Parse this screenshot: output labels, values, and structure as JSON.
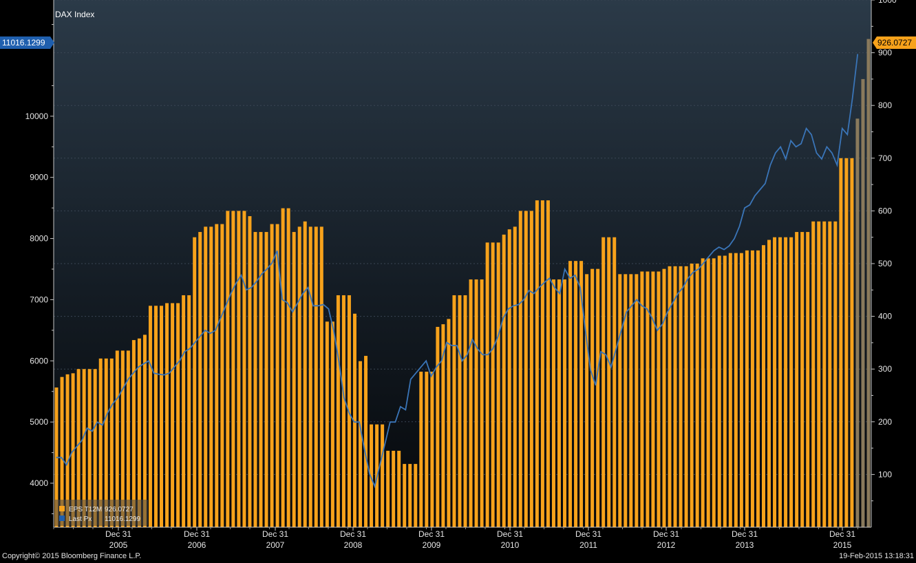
{
  "chart_data": {
    "type": "bar+line",
    "title": "DAX Index",
    "x_ticks": [
      {
        "label": "Dec 31",
        "year": "2005"
      },
      {
        "label": "Dec 31",
        "year": "2006"
      },
      {
        "label": "Dec 31",
        "year": "2007"
      },
      {
        "label": "Dec 31",
        "year": "2008"
      },
      {
        "label": "Dec 31",
        "year": "2009"
      },
      {
        "label": "Dec 31",
        "year": "2010"
      },
      {
        "label": "Dec 31",
        "year": "2011"
      },
      {
        "label": "Dec 31",
        "year": "2012"
      },
      {
        "label": "Dec 31",
        "year": "2013"
      },
      {
        "label": "Dec 31",
        "year": "2015"
      }
    ],
    "left_axis": {
      "ticks": [
        4000,
        5000,
        6000,
        7000,
        8000,
        9000,
        10000
      ],
      "range": [
        3280,
        11900
      ]
    },
    "right_axis": {
      "ticks": [
        100,
        200,
        300,
        400,
        500,
        600,
        700,
        800,
        900,
        1000
      ],
      "range": [
        0,
        1000
      ]
    },
    "series": [
      {
        "name": "EPS T12M",
        "last": "926.0727",
        "color": "#f7a21b",
        "forecast_color": "#8a7a5c",
        "values": [
          265,
          285,
          290,
          292,
          300,
          300,
          300,
          300,
          320,
          320,
          320,
          335,
          335,
          335,
          355,
          358,
          365,
          420,
          420,
          420,
          425,
          425,
          425,
          440,
          440,
          550,
          560,
          570,
          570,
          575,
          575,
          600,
          600,
          600,
          600,
          590,
          560,
          560,
          560,
          575,
          575,
          605,
          605,
          560,
          570,
          580,
          570,
          570,
          570,
          390,
          390,
          440,
          440,
          440,
          405,
          315,
          325,
          195,
          195,
          195,
          145,
          145,
          145,
          120,
          120,
          120,
          295,
          295,
          295,
          380,
          385,
          395,
          440,
          440,
          440,
          470,
          470,
          470,
          540,
          540,
          540,
          555,
          565,
          570,
          600,
          600,
          600,
          620,
          620,
          620,
          470,
          470,
          470,
          505,
          505,
          505,
          480,
          490,
          490,
          550,
          550,
          550,
          480,
          480,
          480,
          480,
          485,
          485,
          485,
          485,
          490,
          495,
          495,
          495,
          495,
          500,
          500,
          510,
          510,
          510,
          515,
          515,
          520,
          520,
          520,
          525,
          525,
          525,
          535,
          545,
          550,
          550,
          550,
          550,
          560,
          560,
          560,
          580,
          580,
          580,
          580,
          580,
          700,
          700,
          700,
          775,
          850,
          926.0727
        ],
        "forecast_from": 145
      },
      {
        "name": "Last Px",
        "last": "11016.1299",
        "color": "#3a75b8",
        "values": [
          4420,
          4420,
          4300,
          4500,
          4600,
          4700,
          4900,
          4850,
          5000,
          4950,
          5150,
          5300,
          5400,
          5550,
          5700,
          5800,
          5900,
          5950,
          6000,
          5800,
          5780,
          5770,
          5800,
          5900,
          6000,
          6150,
          6200,
          6300,
          6400,
          6500,
          6450,
          6500,
          6700,
          6900,
          7100,
          7270,
          7400,
          7160,
          7200,
          7300,
          7420,
          7500,
          7600,
          7800,
          7000,
          6950,
          6800,
          6950,
          7100,
          7200,
          6900,
          6900,
          6920,
          6850,
          6500,
          6000,
          5400,
          5150,
          5000,
          5000,
          4550,
          4150,
          3950,
          4300,
          4650,
          5000,
          5000,
          5250,
          5200,
          5700,
          5800,
          5900,
          6000,
          5750,
          5900,
          6000,
          6300,
          6250,
          6250,
          6000,
          6100,
          6350,
          6200,
          6100,
          6100,
          6200,
          6400,
          6700,
          6850,
          6900,
          6920,
          7000,
          7150,
          7100,
          7200,
          7280,
          7350,
          7200,
          7100,
          7500,
          7350,
          7400,
          7200,
          6500,
          5850,
          5600,
          6150,
          6100,
          5900,
          6200,
          6500,
          6800,
          6900,
          7000,
          6900,
          6850,
          6700,
          6500,
          6600,
          6800,
          6950,
          7100,
          7200,
          7350,
          7450,
          7500,
          7600,
          7700,
          7800,
          7860,
          7820,
          7880,
          8000,
          8200,
          8500,
          8550,
          8700,
          8800,
          8900,
          9200,
          9400,
          9500,
          9300,
          9600,
          9500,
          9550,
          9800,
          9700,
          9400,
          9300,
          9500,
          9400,
          9200,
          9800,
          9700,
          10300,
          11016.1299
        ],
        "end_index": 145
      }
    ]
  },
  "price_badge": "11016.1299",
  "eps_badge": "926.0727",
  "legend": [
    {
      "label": "EPS T12M",
      "value": "926.0727"
    },
    {
      "label": "Last Px",
      "value": "11016.1299"
    }
  ],
  "footer": {
    "copyright": "Copyright© 2015 Bloomberg Finance L.P.",
    "timestamp": "19-Feb-2015 13:18:31"
  },
  "colors": {
    "eps": "#f7a21b",
    "forecast": "#8a7a5c",
    "price": "#3a75b8",
    "badge_price": "#1f5fae",
    "badge_eps": "#f7a21b"
  }
}
